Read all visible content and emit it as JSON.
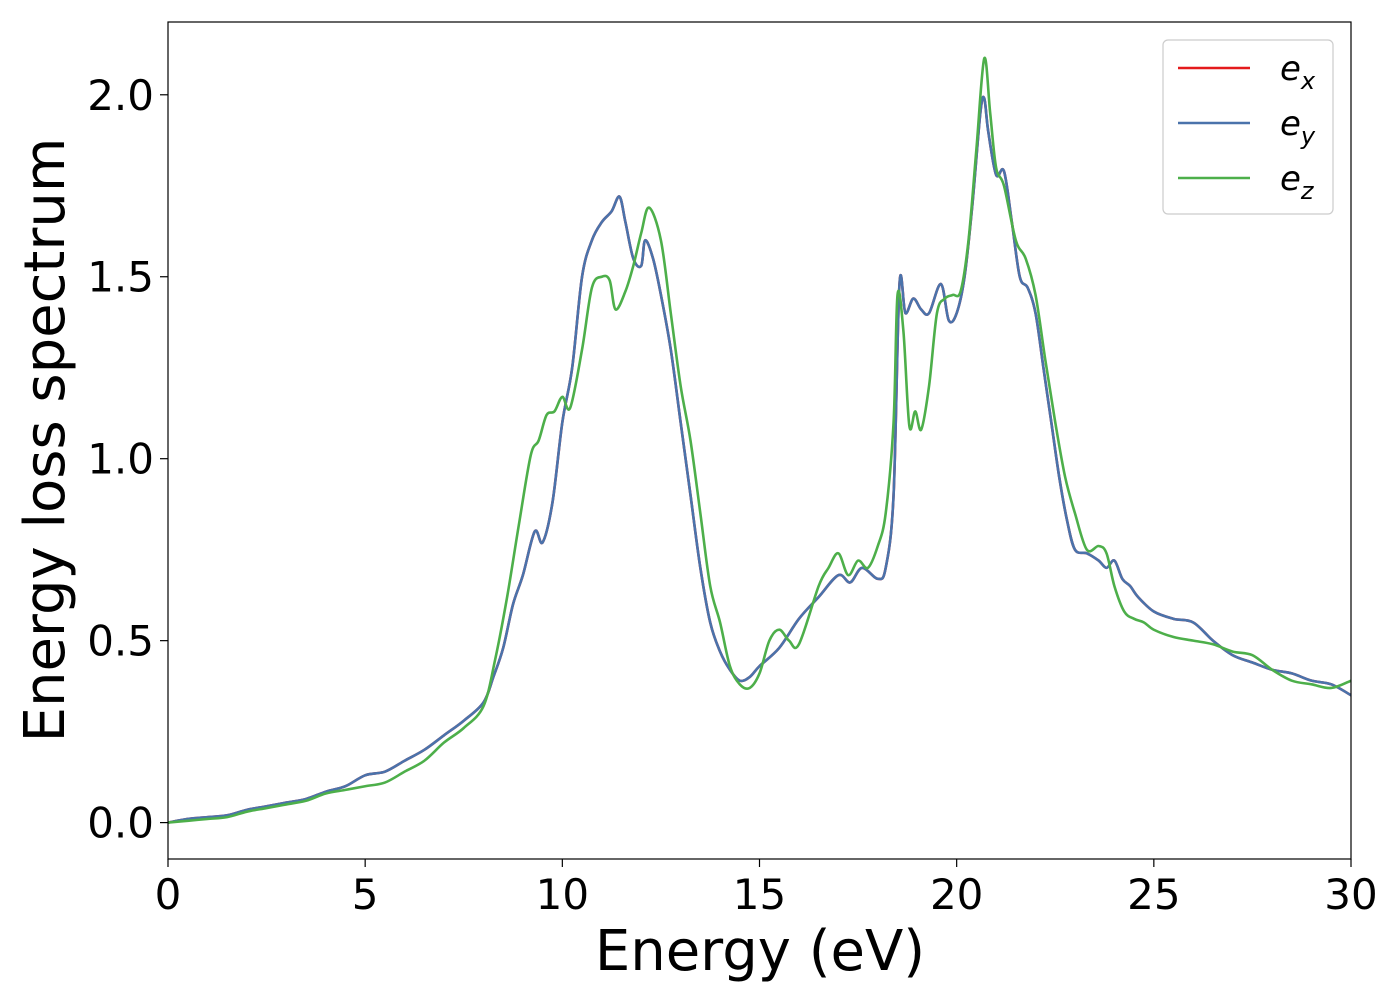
{
  "chart_data": {
    "type": "line",
    "title": "",
    "xlabel": "Energy (eV)",
    "ylabel": "Energy loss spectrum",
    "xlim": [
      0,
      30
    ],
    "ylim": [
      -0.1,
      2.2
    ],
    "xticks": [
      0,
      5,
      10,
      15,
      20,
      25,
      30
    ],
    "xtick_labels": [
      "0",
      "5",
      "10",
      "15",
      "20",
      "25",
      "30"
    ],
    "yticks": [
      0.0,
      0.5,
      1.0,
      1.5,
      2.0
    ],
    "ytick_labels": [
      "0.0",
      "0.5",
      "1.0",
      "1.5",
      "2.0"
    ],
    "grid": false,
    "legend_position": "top-right",
    "series": [
      {
        "name": "e",
        "subscript": "x",
        "color": "#e41a1c",
        "x": [
          0,
          0.5,
          1,
          1.5,
          2,
          2.5,
          3,
          3.5,
          4,
          4.5,
          5,
          5.5,
          6,
          6.5,
          7,
          7.5,
          8,
          8.25,
          8.5,
          8.75,
          9,
          9.3,
          9.5,
          9.75,
          10,
          10.25,
          10.5,
          10.75,
          11,
          11.25,
          11.45,
          11.6,
          11.8,
          12,
          12.1,
          12.3,
          12.5,
          12.75,
          13,
          13.25,
          13.5,
          13.75,
          14,
          14.25,
          14.5,
          14.75,
          15,
          15.5,
          16,
          16.5,
          17,
          17.3,
          17.6,
          18,
          18.2,
          18.4,
          18.55,
          18.7,
          18.9,
          19.1,
          19.3,
          19.6,
          19.8,
          20,
          20.2,
          20.4,
          20.6,
          20.7,
          20.8,
          21,
          21.2,
          21.4,
          21.6,
          21.8,
          22,
          22.2,
          22.4,
          22.6,
          22.8,
          23,
          23.3,
          23.6,
          23.8,
          24,
          24.2,
          24.4,
          24.6,
          25,
          25.5,
          26,
          26.5,
          27,
          27.5,
          28,
          28.5,
          29,
          29.5,
          30
        ],
        "y": [
          0,
          0.01,
          0.015,
          0.02,
          0.035,
          0.045,
          0.055,
          0.065,
          0.085,
          0.1,
          0.13,
          0.14,
          0.17,
          0.2,
          0.24,
          0.28,
          0.33,
          0.4,
          0.48,
          0.6,
          0.68,
          0.8,
          0.77,
          0.88,
          1.1,
          1.25,
          1.5,
          1.6,
          1.65,
          1.68,
          1.72,
          1.65,
          1.55,
          1.53,
          1.6,
          1.55,
          1.45,
          1.3,
          1.1,
          0.9,
          0.7,
          0.55,
          0.47,
          0.42,
          0.39,
          0.4,
          0.43,
          0.48,
          0.56,
          0.62,
          0.68,
          0.66,
          0.7,
          0.67,
          0.7,
          0.9,
          1.48,
          1.4,
          1.44,
          1.41,
          1.4,
          1.48,
          1.38,
          1.4,
          1.5,
          1.7,
          1.95,
          1.99,
          1.9,
          1.78,
          1.79,
          1.65,
          1.5,
          1.47,
          1.4,
          1.25,
          1.1,
          0.95,
          0.83,
          0.75,
          0.74,
          0.72,
          0.7,
          0.72,
          0.67,
          0.65,
          0.62,
          0.58,
          0.56,
          0.55,
          0.5,
          0.46,
          0.44,
          0.42,
          0.41,
          0.39,
          0.38,
          0.35
        ]
      },
      {
        "name": "e",
        "subscript": "y",
        "color": "#4a73ab",
        "x": [
          0,
          0.5,
          1,
          1.5,
          2,
          2.5,
          3,
          3.5,
          4,
          4.5,
          5,
          5.5,
          6,
          6.5,
          7,
          7.5,
          8,
          8.25,
          8.5,
          8.75,
          9,
          9.3,
          9.5,
          9.75,
          10,
          10.25,
          10.5,
          10.75,
          11,
          11.25,
          11.45,
          11.6,
          11.8,
          12,
          12.1,
          12.3,
          12.5,
          12.75,
          13,
          13.25,
          13.5,
          13.75,
          14,
          14.25,
          14.5,
          14.75,
          15,
          15.5,
          16,
          16.5,
          17,
          17.3,
          17.6,
          18,
          18.2,
          18.4,
          18.55,
          18.7,
          18.9,
          19.1,
          19.3,
          19.6,
          19.8,
          20,
          20.2,
          20.4,
          20.6,
          20.7,
          20.8,
          21,
          21.2,
          21.4,
          21.6,
          21.8,
          22,
          22.2,
          22.4,
          22.6,
          22.8,
          23,
          23.3,
          23.6,
          23.8,
          24,
          24.2,
          24.4,
          24.6,
          25,
          25.5,
          26,
          26.5,
          27,
          27.5,
          28,
          28.5,
          29,
          29.5,
          30
        ],
        "y": [
          0,
          0.01,
          0.015,
          0.02,
          0.035,
          0.045,
          0.055,
          0.065,
          0.085,
          0.1,
          0.13,
          0.14,
          0.17,
          0.2,
          0.24,
          0.28,
          0.33,
          0.4,
          0.48,
          0.6,
          0.68,
          0.8,
          0.77,
          0.88,
          1.1,
          1.25,
          1.5,
          1.6,
          1.65,
          1.68,
          1.72,
          1.65,
          1.55,
          1.53,
          1.6,
          1.55,
          1.45,
          1.3,
          1.1,
          0.9,
          0.7,
          0.55,
          0.47,
          0.42,
          0.39,
          0.4,
          0.43,
          0.48,
          0.56,
          0.62,
          0.68,
          0.66,
          0.7,
          0.67,
          0.7,
          0.9,
          1.48,
          1.4,
          1.44,
          1.41,
          1.4,
          1.48,
          1.38,
          1.4,
          1.5,
          1.7,
          1.95,
          1.99,
          1.9,
          1.78,
          1.79,
          1.65,
          1.5,
          1.47,
          1.4,
          1.25,
          1.1,
          0.95,
          0.83,
          0.75,
          0.74,
          0.72,
          0.7,
          0.72,
          0.67,
          0.65,
          0.62,
          0.58,
          0.56,
          0.55,
          0.5,
          0.46,
          0.44,
          0.42,
          0.41,
          0.39,
          0.38,
          0.35
        ]
      },
      {
        "name": "e",
        "subscript": "z",
        "color": "#4daf4a",
        "x": [
          0,
          0.5,
          1,
          1.5,
          2,
          2.5,
          3,
          3.5,
          4,
          4.5,
          5,
          5.5,
          6,
          6.5,
          7,
          7.5,
          8,
          8.3,
          8.6,
          8.9,
          9.2,
          9.4,
          9.6,
          9.8,
          10,
          10.2,
          10.5,
          10.75,
          11,
          11.2,
          11.35,
          11.6,
          11.8,
          12,
          12.2,
          12.5,
          12.75,
          13,
          13.25,
          13.5,
          13.75,
          14,
          14.25,
          14.5,
          14.75,
          15,
          15.25,
          15.5,
          15.75,
          16,
          16.5,
          16.75,
          17,
          17.25,
          17.5,
          17.75,
          18,
          18.2,
          18.4,
          18.5,
          18.65,
          18.8,
          18.95,
          19.1,
          19.3,
          19.5,
          19.7,
          19.9,
          20.1,
          20.3,
          20.5,
          20.7,
          20.85,
          21,
          21.2,
          21.5,
          21.75,
          22,
          22.25,
          22.5,
          22.75,
          23,
          23.3,
          23.6,
          23.8,
          24,
          24.25,
          24.5,
          24.75,
          25,
          25.5,
          26,
          26.5,
          27,
          27.5,
          28,
          28.5,
          29,
          29.5,
          30
        ],
        "y": [
          0,
          0.005,
          0.01,
          0.015,
          0.03,
          0.04,
          0.05,
          0.06,
          0.08,
          0.09,
          0.1,
          0.11,
          0.14,
          0.17,
          0.22,
          0.26,
          0.32,
          0.45,
          0.62,
          0.82,
          1.01,
          1.05,
          1.12,
          1.13,
          1.17,
          1.14,
          1.3,
          1.47,
          1.5,
          1.49,
          1.41,
          1.46,
          1.53,
          1.62,
          1.69,
          1.6,
          1.4,
          1.2,
          1.05,
          0.85,
          0.65,
          0.55,
          0.43,
          0.38,
          0.37,
          0.41,
          0.5,
          0.53,
          0.5,
          0.49,
          0.65,
          0.7,
          0.74,
          0.68,
          0.72,
          0.7,
          0.76,
          0.85,
          1.1,
          1.45,
          1.35,
          1.09,
          1.13,
          1.08,
          1.2,
          1.4,
          1.44,
          1.45,
          1.46,
          1.6,
          1.85,
          2.1,
          1.95,
          1.8,
          1.75,
          1.6,
          1.55,
          1.45,
          1.27,
          1.1,
          0.95,
          0.85,
          0.75,
          0.76,
          0.74,
          0.65,
          0.58,
          0.56,
          0.55,
          0.53,
          0.51,
          0.5,
          0.49,
          0.47,
          0.46,
          0.42,
          0.39,
          0.38,
          0.37,
          0.39
        ]
      }
    ]
  }
}
